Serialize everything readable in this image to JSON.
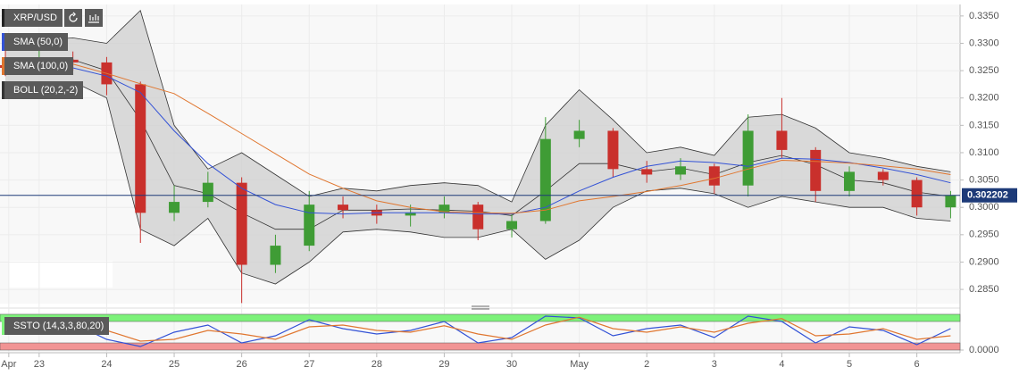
{
  "chart_data": [
    {
      "type": "candlestick",
      "symbol": "XRP/USD",
      "x": [
        0.5,
        1,
        1.5,
        2,
        2.5,
        3,
        3.5,
        4,
        4.5,
        5,
        5.5,
        6,
        6.5,
        7,
        7.5,
        8,
        8.5,
        9,
        9.5,
        10,
        10.5,
        11,
        11.5,
        12,
        12.5,
        13,
        13.5,
        14,
        14.5
      ],
      "open": [
        0.326,
        0.3255,
        0.327,
        0.3265,
        0.3225,
        0.299,
        0.301,
        0.3045,
        0.2895,
        0.293,
        0.3005,
        0.2995,
        0.2985,
        0.299,
        0.3005,
        0.296,
        0.2975,
        0.3125,
        0.314,
        0.307,
        0.306,
        0.3075,
        0.304,
        0.314,
        0.3105,
        0.303,
        0.3065,
        0.305,
        0.3
      ],
      "high": [
        0.329,
        0.329,
        0.3285,
        0.3275,
        0.323,
        0.304,
        0.3065,
        0.3055,
        0.295,
        0.303,
        0.302,
        0.3005,
        0.3005,
        0.302,
        0.301,
        0.299,
        0.3165,
        0.316,
        0.3145,
        0.3085,
        0.309,
        0.308,
        0.317,
        0.32,
        0.311,
        0.3075,
        0.307,
        0.3055,
        0.303
      ],
      "low": [
        0.324,
        0.3245,
        0.325,
        0.3205,
        0.2935,
        0.2975,
        0.3,
        0.2825,
        0.288,
        0.292,
        0.298,
        0.297,
        0.2965,
        0.298,
        0.294,
        0.2945,
        0.297,
        0.311,
        0.3055,
        0.3045,
        0.305,
        0.3025,
        0.302,
        0.309,
        0.301,
        0.302,
        0.304,
        0.2985,
        0.298
      ],
      "close": [
        0.3255,
        0.327,
        0.3265,
        0.3225,
        0.299,
        0.301,
        0.3045,
        0.2895,
        0.293,
        0.3005,
        0.2995,
        0.2985,
        0.299,
        0.3005,
        0.296,
        0.2975,
        0.3125,
        0.314,
        0.307,
        0.306,
        0.3075,
        0.304,
        0.314,
        0.3105,
        0.303,
        0.3065,
        0.305,
        0.3,
        0.3022
      ],
      "up_color": "#3f9c35",
      "down_color": "#c9302c",
      "overlays": [
        {
          "name": "SMA (50,0)",
          "color": "#3352d6",
          "values": [
            0.3262,
            0.3258,
            0.3255,
            0.324,
            0.321,
            0.314,
            0.308,
            0.3035,
            0.3005,
            0.299,
            0.2988,
            0.299,
            0.299,
            0.299,
            0.2988,
            0.2988,
            0.3,
            0.303,
            0.3055,
            0.3075,
            0.3085,
            0.3082,
            0.3075,
            0.309,
            0.3088,
            0.3082,
            0.3072,
            0.306,
            0.3045
          ]
        },
        {
          "name": "SMA (100,0)",
          "color": "#e0762f",
          "values": [
            0.3272,
            0.3268,
            0.3262,
            0.3245,
            0.3226,
            0.3208,
            0.3172,
            0.3135,
            0.3098,
            0.3061,
            0.3035,
            0.3012,
            0.3,
            0.2992,
            0.299,
            0.2989,
            0.2995,
            0.3012,
            0.302,
            0.3029,
            0.304,
            0.3053,
            0.307,
            0.3086,
            0.3084,
            0.3081,
            0.3076,
            0.307,
            0.306
          ]
        }
      ],
      "bands": {
        "name": "BOLL (20,2,-2)",
        "color": "#333333",
        "fill": "#cfcfcf",
        "upper": [
          0.33,
          0.3305,
          0.331,
          0.33,
          0.336,
          0.315,
          0.307,
          0.31,
          0.306,
          0.302,
          0.3035,
          0.303,
          0.304,
          0.3045,
          0.304,
          0.301,
          0.315,
          0.3215,
          0.316,
          0.31,
          0.311,
          0.3095,
          0.3165,
          0.317,
          0.3145,
          0.31,
          0.309,
          0.3075,
          0.3065
        ],
        "middle": [
          0.3255,
          0.3265,
          0.327,
          0.325,
          0.316,
          0.304,
          0.3025,
          0.299,
          0.296,
          0.296,
          0.2995,
          0.2995,
          0.2997,
          0.2995,
          0.2993,
          0.2985,
          0.303,
          0.308,
          0.308,
          0.3065,
          0.3072,
          0.306,
          0.3082,
          0.3095,
          0.3078,
          0.305,
          0.3045,
          0.3028,
          0.302
        ],
        "lower": [
          0.321,
          0.3225,
          0.323,
          0.32,
          0.296,
          0.293,
          0.298,
          0.288,
          0.286,
          0.29,
          0.2955,
          0.296,
          0.2955,
          0.2945,
          0.2945,
          0.296,
          0.2905,
          0.294,
          0.3,
          0.303,
          0.3035,
          0.3025,
          0.3,
          0.302,
          0.301,
          0.3,
          0.3,
          0.298,
          0.2975
        ]
      },
      "last_price": 0.302202,
      "last_price_color": "#1d3a78",
      "xlim": [
        0.42,
        14.64
      ],
      "ylim": [
        0.2824,
        0.3371
      ],
      "xticks": [
        {
          "value": 0.55,
          "label": "Apr"
        },
        {
          "value": 1,
          "label": "23"
        },
        {
          "value": 2,
          "label": "24"
        },
        {
          "value": 3,
          "label": "25"
        },
        {
          "value": 4,
          "label": "26"
        },
        {
          "value": 5,
          "label": "27"
        },
        {
          "value": 6,
          "label": "28"
        },
        {
          "value": 7,
          "label": "29"
        },
        {
          "value": 8,
          "label": "30"
        },
        {
          "value": 9,
          "label": "May"
        },
        {
          "value": 10,
          "label": "2"
        },
        {
          "value": 11,
          "label": "3"
        },
        {
          "value": 12,
          "label": "4"
        },
        {
          "value": 13,
          "label": "5"
        },
        {
          "value": 14,
          "label": "6"
        }
      ],
      "yticks": [
        {
          "value": 0.285,
          "label": "0.2850"
        },
        {
          "value": 0.29,
          "label": "0.2900"
        },
        {
          "value": 0.295,
          "label": "0.2950"
        },
        {
          "value": 0.3,
          "label": "0.3000"
        },
        {
          "value": 0.305,
          "label": "0.3050"
        },
        {
          "value": 0.31,
          "label": "0.3100"
        },
        {
          "value": 0.315,
          "label": "0.3150"
        },
        {
          "value": 0.32,
          "label": "0.3200"
        },
        {
          "value": 0.325,
          "label": "0.3250"
        },
        {
          "value": 0.33,
          "label": "0.3300"
        },
        {
          "value": 0.335,
          "label": "0.3350"
        }
      ],
      "grid": true
    },
    {
      "type": "line",
      "name": "SSTO (14,3,3,80,20)",
      "x": [
        0.5,
        1,
        1.5,
        2,
        2.5,
        3,
        3.5,
        4,
        4.5,
        5,
        5.5,
        6,
        6.5,
        7,
        7.5,
        8,
        8.5,
        9,
        9.5,
        10,
        10.5,
        11,
        11.5,
        12,
        12.5,
        13,
        13.5,
        14,
        14.5
      ],
      "series": [
        {
          "color": "#3352d6",
          "values": [
            60,
            80,
            75,
            30,
            10,
            50,
            70,
            20,
            40,
            85,
            60,
            45,
            55,
            80,
            20,
            35,
            95,
            90,
            40,
            60,
            70,
            35,
            95,
            80,
            20,
            65,
            55,
            15,
            60
          ]
        },
        {
          "color": "#e0762f",
          "values": [
            55,
            70,
            78,
            55,
            25,
            30,
            55,
            45,
            30,
            65,
            70,
            55,
            50,
            68,
            45,
            30,
            70,
            92,
            60,
            50,
            65,
            50,
            75,
            88,
            40,
            45,
            60,
            30,
            40
          ]
        }
      ],
      "bands": [
        {
          "from": 80,
          "to": 100,
          "color": "#7df27a"
        },
        {
          "from": 0,
          "to": 20,
          "color": "#f19494"
        }
      ],
      "ylim": [
        -5,
        105
      ],
      "yticks": [
        {
          "value": 0,
          "label": "0.0000"
        }
      ]
    }
  ]
}
